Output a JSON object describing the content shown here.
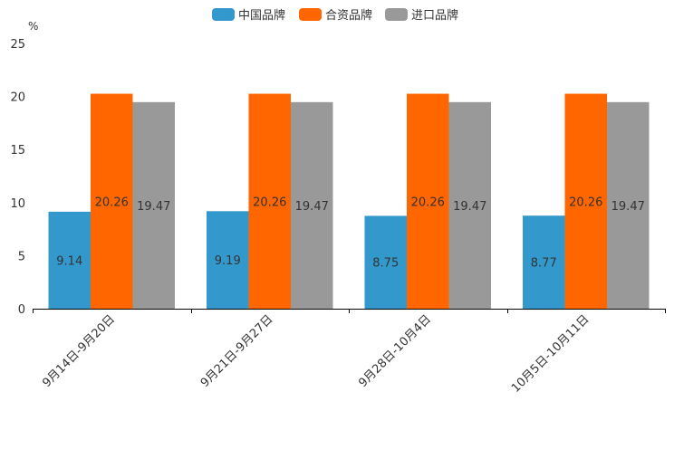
{
  "chart_data": {
    "type": "bar",
    "ylabel": "%",
    "ylim": [
      0,
      25
    ],
    "yticks": [
      0,
      5,
      10,
      15,
      20,
      25
    ],
    "legend_position": "top-center",
    "categories": [
      "9月14日-9月20日",
      "9月21日-9月27日",
      "9月28日-10月4日",
      "10月5日-10月11日"
    ],
    "series": [
      {
        "name": "中国品牌",
        "color": "#3399CC",
        "values": [
          9.14,
          9.19,
          8.75,
          8.77
        ],
        "labels": [
          "9.14",
          "9.19",
          "8.75",
          "8.77"
        ]
      },
      {
        "name": "合资品牌",
        "color": "#FF6600",
        "values": [
          20.26,
          20.26,
          20.26,
          20.26
        ],
        "labels": [
          "20.26",
          "20.26",
          "20.26",
          "20.26"
        ]
      },
      {
        "name": "进口品牌",
        "color": "#999999",
        "values": [
          19.47,
          19.47,
          19.47,
          19.47
        ],
        "labels": [
          "19.47",
          "19.47",
          "19.47",
          "19.47"
        ]
      }
    ]
  }
}
